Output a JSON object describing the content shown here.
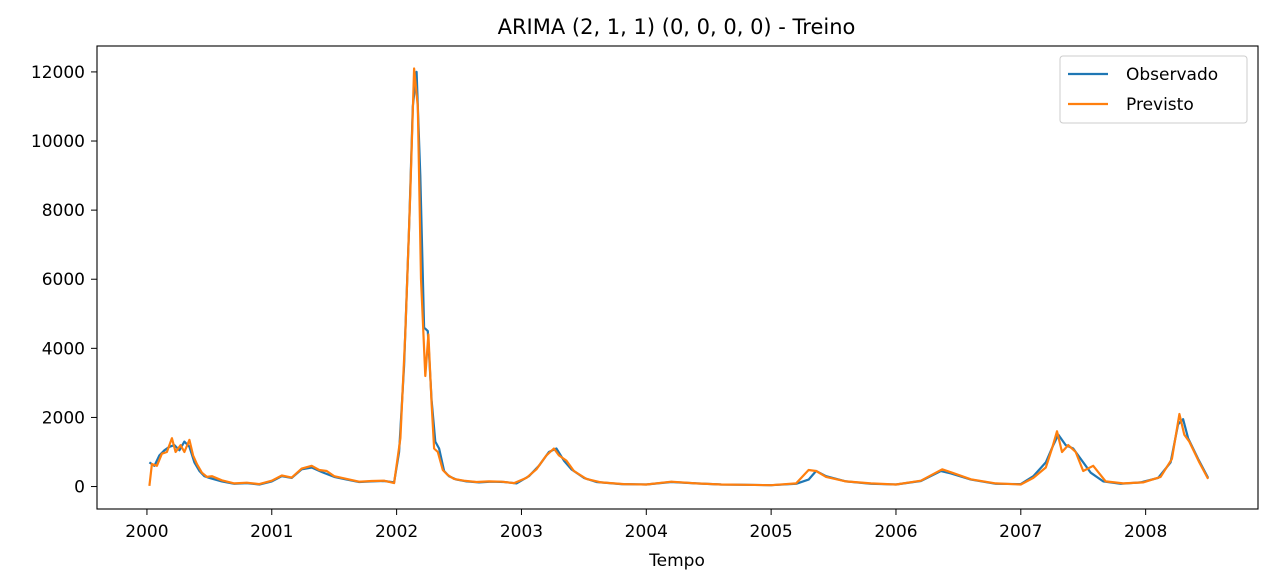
{
  "chart_data": {
    "type": "line",
    "title": "ARIMA (2, 1, 1) (0, 0, 0, 0) - Treino",
    "xlabel": "Tempo",
    "ylabel": "",
    "xlim": [
      1999.6,
      2008.9
    ],
    "ylim": [
      -650,
      12750
    ],
    "xticks": [
      2000,
      2001,
      2002,
      2003,
      2004,
      2005,
      2006,
      2007,
      2008
    ],
    "xtick_labels": [
      "2000",
      "2001",
      "2002",
      "2003",
      "2004",
      "2005",
      "2006",
      "2007",
      "2008"
    ],
    "yticks": [
      0,
      2000,
      4000,
      6000,
      8000,
      10000,
      12000
    ],
    "ytick_labels": [
      "0",
      "2000",
      "4000",
      "6000",
      "8000",
      "10000",
      "12000"
    ],
    "grid": false,
    "legend_position": "top-right",
    "series": [
      {
        "name": "Observado",
        "color": "#1f77b4",
        "x": [
          2000.02,
          2000.06,
          2000.1,
          2000.14,
          2000.18,
          2000.22,
          2000.26,
          2000.3,
          2000.34,
          2000.38,
          2000.42,
          2000.46,
          2000.5,
          2000.6,
          2000.7,
          2000.8,
          2000.9,
          2001.0,
          2001.08,
          2001.16,
          2001.24,
          2001.32,
          2001.4,
          2001.5,
          2001.6,
          2001.7,
          2001.8,
          2001.9,
          2001.98,
          2002.02,
          2002.06,
          2002.1,
          2002.13,
          2002.16,
          2002.19,
          2002.22,
          2002.25,
          2002.28,
          2002.31,
          2002.34,
          2002.38,
          2002.42,
          2002.48,
          2002.56,
          2002.66,
          2002.76,
          2002.86,
          2002.96,
          2003.06,
          2003.14,
          2003.22,
          2003.28,
          2003.34,
          2003.4,
          2003.5,
          2003.6,
          2003.8,
          2004.0,
          2004.2,
          2004.4,
          2004.6,
          2004.8,
          2005.0,
          2005.2,
          2005.3,
          2005.36,
          2005.44,
          2005.6,
          2005.8,
          2006.0,
          2006.2,
          2006.36,
          2006.44,
          2006.6,
          2006.8,
          2007.0,
          2007.1,
          2007.2,
          2007.26,
          2007.3,
          2007.36,
          2007.42,
          2007.48,
          2007.56,
          2007.66,
          2007.8,
          2007.96,
          2008.1,
          2008.2,
          2008.26,
          2008.3,
          2008.34,
          2008.42,
          2008.5
        ],
        "values": [
          700,
          600,
          900,
          1050,
          1150,
          1200,
          1050,
          1300,
          1150,
          700,
          450,
          300,
          250,
          150,
          80,
          100,
          60,
          150,
          300,
          250,
          500,
          550,
          420,
          280,
          200,
          130,
          150,
          160,
          120,
          1000,
          3500,
          7500,
          11000,
          12000,
          9000,
          4600,
          4500,
          2500,
          1300,
          1100,
          450,
          300,
          200,
          150,
          120,
          140,
          130,
          90,
          300,
          600,
          1000,
          1100,
          750,
          500,
          250,
          130,
          70,
          60,
          130,
          90,
          60,
          50,
          40,
          80,
          200,
          450,
          300,
          150,
          80,
          60,
          160,
          450,
          380,
          200,
          80,
          70,
          300,
          700,
          1200,
          1500,
          1200,
          1100,
          800,
          400,
          150,
          80,
          120,
          250,
          700,
          1800,
          1950,
          1400,
          800,
          250
        ]
      },
      {
        "name": "Previsto",
        "color": "#ff7f0e",
        "x": [
          2000.02,
          2000.04,
          2000.08,
          2000.12,
          2000.16,
          2000.2,
          2000.23,
          2000.27,
          2000.3,
          2000.34,
          2000.37,
          2000.4,
          2000.44,
          2000.48,
          2000.52,
          2000.6,
          2000.7,
          2000.8,
          2000.9,
          2001.0,
          2001.08,
          2001.16,
          2001.24,
          2001.32,
          2001.38,
          2001.44,
          2001.5,
          2001.6,
          2001.7,
          2001.8,
          2001.9,
          2001.98,
          2002.03,
          2002.07,
          2002.11,
          2002.14,
          2002.17,
          2002.195,
          2002.23,
          2002.255,
          2002.28,
          2002.3,
          2002.33,
          2002.37,
          2002.41,
          2002.46,
          2002.54,
          2002.64,
          2002.74,
          2002.84,
          2002.94,
          2003.04,
          2003.12,
          2003.2,
          2003.26,
          2003.3,
          2003.36,
          2003.42,
          2003.52,
          2003.64,
          2003.82,
          2004.0,
          2004.2,
          2004.4,
          2004.6,
          2004.8,
          2005.0,
          2005.2,
          2005.3,
          2005.36,
          2005.44,
          2005.6,
          2005.8,
          2006.0,
          2006.2,
          2006.37,
          2006.45,
          2006.6,
          2006.8,
          2007.0,
          2007.1,
          2007.2,
          2007.25,
          2007.29,
          2007.33,
          2007.38,
          2007.44,
          2007.5,
          2007.58,
          2007.68,
          2007.82,
          2007.98,
          2008.12,
          2008.21,
          2008.27,
          2008.31,
          2008.35,
          2008.43,
          2008.5
        ],
        "values": [
          20,
          650,
          600,
          950,
          1000,
          1400,
          1000,
          1200,
          1000,
          1350,
          900,
          650,
          400,
          280,
          300,
          180,
          90,
          110,
          70,
          170,
          320,
          260,
          520,
          600,
          480,
          450,
          300,
          220,
          140,
          160,
          170,
          100,
          1400,
          4500,
          8500,
          12100,
          11000,
          6000,
          3200,
          4400,
          2400,
          1100,
          1000,
          480,
          330,
          220,
          170,
          130,
          150,
          140,
          100,
          250,
          500,
          900,
          1100,
          900,
          750,
          450,
          220,
          120,
          70,
          60,
          140,
          90,
          60,
          50,
          40,
          90,
          480,
          450,
          280,
          150,
          90,
          60,
          170,
          500,
          400,
          210,
          90,
          60,
          250,
          550,
          1100,
          1600,
          1000,
          1200,
          1000,
          450,
          600,
          150,
          90,
          120,
          280,
          800,
          2100,
          1500,
          1300,
          700,
          220
        ]
      }
    ]
  }
}
